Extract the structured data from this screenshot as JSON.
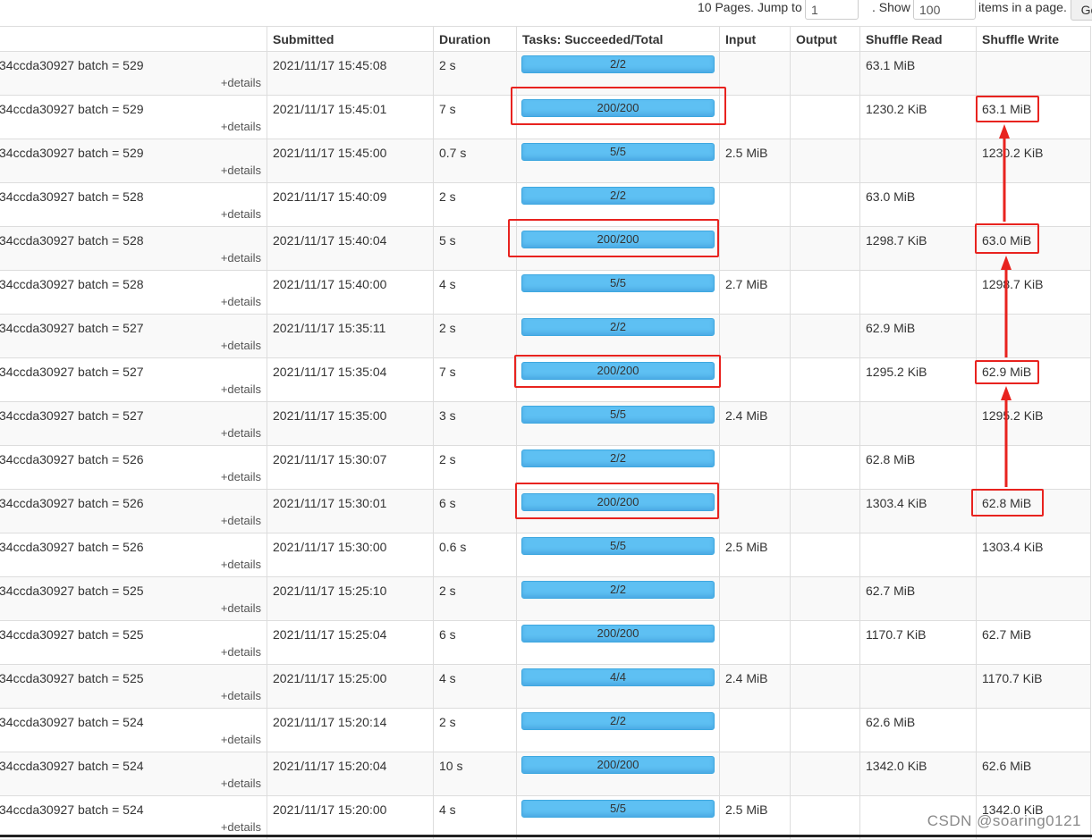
{
  "pager": {
    "pages_text": "10 Pages. Jump to",
    "jump_value": "1",
    "show_text": ". Show",
    "show_value": "100",
    "items_text": "items in a page.",
    "go_label": "Go"
  },
  "columns": {
    "submitted": "Submitted",
    "duration": "Duration",
    "tasks": "Tasks: Succeeded/Total",
    "input": "Input",
    "output": "Output",
    "shuffle_read": "Shuffle Read",
    "shuffle_write": "Shuffle Write"
  },
  "details_label": "+details",
  "rows": [
    {
      "desc": "34ccda30927 batch = 529",
      "submitted": "2021/11/17 15:45:08",
      "duration": "2 s",
      "tasks": "2/2",
      "input": "",
      "output": "",
      "shuffle_read": "63.1 MiB",
      "shuffle_write": ""
    },
    {
      "desc": "34ccda30927 batch = 529",
      "submitted": "2021/11/17 15:45:01",
      "duration": "7 s",
      "tasks": "200/200",
      "input": "",
      "output": "",
      "shuffle_read": "1230.2 KiB",
      "shuffle_write": "63.1 MiB"
    },
    {
      "desc": "34ccda30927 batch = 529",
      "submitted": "2021/11/17 15:45:00",
      "duration": "0.7 s",
      "tasks": "5/5",
      "input": "2.5 MiB",
      "output": "",
      "shuffle_read": "",
      "shuffle_write": "1230.2 KiB"
    },
    {
      "desc": "34ccda30927 batch = 528",
      "submitted": "2021/11/17 15:40:09",
      "duration": "2 s",
      "tasks": "2/2",
      "input": "",
      "output": "",
      "shuffle_read": "63.0 MiB",
      "shuffle_write": ""
    },
    {
      "desc": "34ccda30927 batch = 528",
      "submitted": "2021/11/17 15:40:04",
      "duration": "5 s",
      "tasks": "200/200",
      "input": "",
      "output": "",
      "shuffle_read": "1298.7 KiB",
      "shuffle_write": "63.0 MiB"
    },
    {
      "desc": "34ccda30927 batch = 528",
      "submitted": "2021/11/17 15:40:00",
      "duration": "4 s",
      "tasks": "5/5",
      "input": "2.7 MiB",
      "output": "",
      "shuffle_read": "",
      "shuffle_write": "1298.7 KiB"
    },
    {
      "desc": "34ccda30927 batch = 527",
      "submitted": "2021/11/17 15:35:11",
      "duration": "2 s",
      "tasks": "2/2",
      "input": "",
      "output": "",
      "shuffle_read": "62.9 MiB",
      "shuffle_write": ""
    },
    {
      "desc": "34ccda30927 batch = 527",
      "submitted": "2021/11/17 15:35:04",
      "duration": "7 s",
      "tasks": "200/200",
      "input": "",
      "output": "",
      "shuffle_read": "1295.2 KiB",
      "shuffle_write": "62.9 MiB"
    },
    {
      "desc": "34ccda30927 batch = 527",
      "submitted": "2021/11/17 15:35:00",
      "duration": "3 s",
      "tasks": "5/5",
      "input": "2.4 MiB",
      "output": "",
      "shuffle_read": "",
      "shuffle_write": "1295.2 KiB"
    },
    {
      "desc": "34ccda30927 batch = 526",
      "submitted": "2021/11/17 15:30:07",
      "duration": "2 s",
      "tasks": "2/2",
      "input": "",
      "output": "",
      "shuffle_read": "62.8 MiB",
      "shuffle_write": ""
    },
    {
      "desc": "34ccda30927 batch = 526",
      "submitted": "2021/11/17 15:30:01",
      "duration": "6 s",
      "tasks": "200/200",
      "input": "",
      "output": "",
      "shuffle_read": "1303.4 KiB",
      "shuffle_write": "62.8 MiB"
    },
    {
      "desc": "34ccda30927 batch = 526",
      "submitted": "2021/11/17 15:30:00",
      "duration": "0.6 s",
      "tasks": "5/5",
      "input": "2.5 MiB",
      "output": "",
      "shuffle_read": "",
      "shuffle_write": "1303.4 KiB"
    },
    {
      "desc": "34ccda30927 batch = 525",
      "submitted": "2021/11/17 15:25:10",
      "duration": "2 s",
      "tasks": "2/2",
      "input": "",
      "output": "",
      "shuffle_read": "62.7 MiB",
      "shuffle_write": ""
    },
    {
      "desc": "34ccda30927 batch = 525",
      "submitted": "2021/11/17 15:25:04",
      "duration": "6 s",
      "tasks": "200/200",
      "input": "",
      "output": "",
      "shuffle_read": "1170.7 KiB",
      "shuffle_write": "62.7 MiB"
    },
    {
      "desc": "34ccda30927 batch = 525",
      "submitted": "2021/11/17 15:25:00",
      "duration": "4 s",
      "tasks": "4/4",
      "input": "2.4 MiB",
      "output": "",
      "shuffle_read": "",
      "shuffle_write": "1170.7 KiB"
    },
    {
      "desc": "34ccda30927 batch = 524",
      "submitted": "2021/11/17 15:20:14",
      "duration": "2 s",
      "tasks": "2/2",
      "input": "",
      "output": "",
      "shuffle_read": "62.6 MiB",
      "shuffle_write": ""
    },
    {
      "desc": "34ccda30927 batch = 524",
      "submitted": "2021/11/17 15:20:04",
      "duration": "10 s",
      "tasks": "200/200",
      "input": "",
      "output": "",
      "shuffle_read": "1342.0 KiB",
      "shuffle_write": "62.6 MiB"
    },
    {
      "desc": "34ccda30927 batch = 524",
      "submitted": "2021/11/17 15:20:00",
      "duration": "4 s",
      "tasks": "5/5",
      "input": "2.5 MiB",
      "output": "",
      "shuffle_read": "",
      "shuffle_write": "1342.0 KiB"
    }
  ],
  "watermark": "CSDN @soaring0121",
  "colors": {
    "progress_fill": "#5ec0f3",
    "annotation": "#e8231f",
    "row_striped": "#f9f9f9"
  }
}
